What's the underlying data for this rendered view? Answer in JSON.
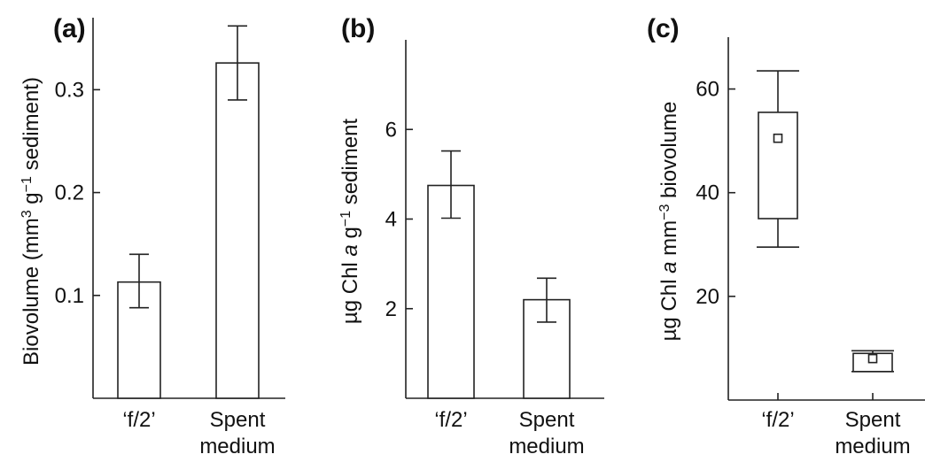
{
  "chart_data": [
    {
      "panel": "(a)",
      "type": "bar",
      "categories": [
        [
          "‘f/2’"
        ],
        [
          "Spent",
          "medium"
        ]
      ],
      "values": [
        0.113,
        0.326
      ],
      "err_low": [
        0.088,
        0.29
      ],
      "err_high": [
        0.14,
        0.362
      ],
      "ylabel_parts": [
        {
          "t": "Biovolume (mm",
          "sup": false
        },
        {
          "t": "3",
          "sup": true
        },
        {
          "t": " g",
          "sup": false
        },
        {
          "t": "−1",
          "sup": true
        },
        {
          "t": " sediment)",
          "sup": false
        }
      ],
      "ylim": [
        0,
        0.37
      ],
      "yticks": [
        0.1,
        0.2,
        0.3
      ],
      "ytick_labels": [
        "0.1",
        "0.2",
        "0.3"
      ]
    },
    {
      "panel": "(b)",
      "type": "bar",
      "categories": [
        [
          "‘f/2’"
        ],
        [
          "Spent",
          "medium"
        ]
      ],
      "values": [
        4.75,
        2.2
      ],
      "err_low": [
        4.02,
        1.7
      ],
      "err_high": [
        5.52,
        2.68
      ],
      "ylabel_parts": [
        {
          "t": "µg Chl ",
          "sup": false,
          "it": false
        },
        {
          "t": "a",
          "sup": false,
          "it": true
        },
        {
          "t": " g",
          "sup": false,
          "it": false
        },
        {
          "t": "−1",
          "sup": true,
          "it": false
        },
        {
          "t": " sediment",
          "sup": false,
          "it": false
        }
      ],
      "ylim": [
        0,
        8.0
      ],
      "yticks": [
        2,
        4,
        6
      ],
      "ytick_labels": [
        "2",
        "4",
        "6"
      ]
    },
    {
      "panel": "(c)",
      "type": "box",
      "categories": [
        [
          "‘f/2’"
        ],
        [
          "Spent",
          "medium"
        ]
      ],
      "boxes": [
        {
          "whisker_low": 29.5,
          "q1": 35.0,
          "q3": 55.5,
          "whisker_high": 63.5,
          "mean": 50.5
        },
        {
          "whisker_low": 5.5,
          "q1": 5.5,
          "q3": 9.0,
          "whisker_high": 9.5,
          "mean": 8.0
        }
      ],
      "ylabel_parts": [
        {
          "t": "µg Chl ",
          "sup": false,
          "it": false
        },
        {
          "t": "a",
          "sup": false,
          "it": true
        },
        {
          "t": " mm",
          "sup": false,
          "it": false
        },
        {
          "t": "−3",
          "sup": true,
          "it": false
        },
        {
          "t": " biovolume",
          "sup": false,
          "it": false
        }
      ],
      "ylim": [
        0,
        70
      ],
      "yticks": [
        20,
        40,
        60
      ],
      "ytick_labels": [
        "20",
        "40",
        "60"
      ]
    }
  ]
}
